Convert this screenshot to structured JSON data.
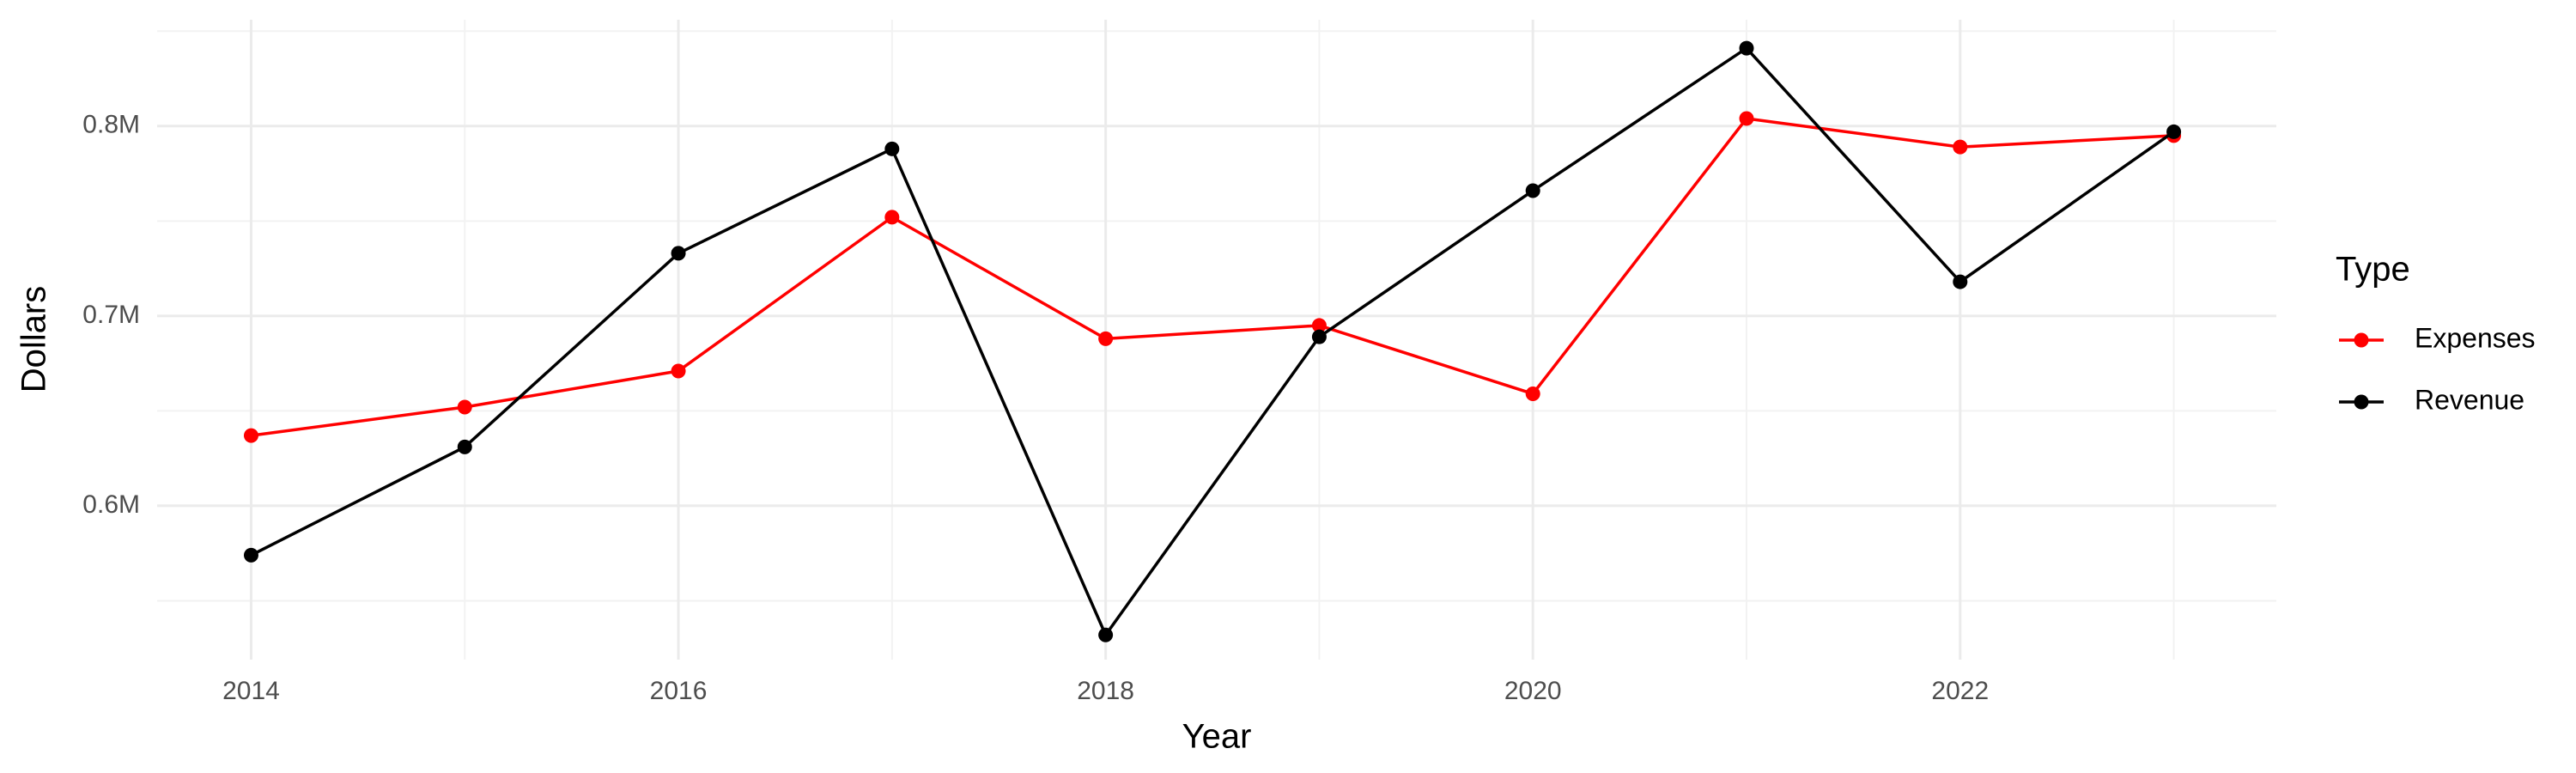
{
  "chart_data": {
    "type": "line",
    "x": [
      2014,
      2015,
      2016,
      2017,
      2018,
      2019,
      2020,
      2021,
      2022,
      2023
    ],
    "series": [
      {
        "name": "Expenses",
        "color": "#ff0000",
        "values": [
          637000,
          652000,
          671000,
          752000,
          688000,
          695000,
          659000,
          804000,
          789000,
          795000
        ]
      },
      {
        "name": "Revenue",
        "color": "#000000",
        "values": [
          574000,
          631000,
          733000,
          788000,
          532000,
          689000,
          766000,
          841000,
          718000,
          797000
        ]
      }
    ],
    "xlabel": "Year",
    "ylabel": "Dollars",
    "legend_title": "Type",
    "xlim": [
      2013.56,
      2023.48
    ],
    "xticks": [
      2014,
      2016,
      2018,
      2020,
      2022
    ],
    "ylim": [
      519000,
      856000
    ],
    "yticks": [
      {
        "value": 600000,
        "label": "0.6M"
      },
      {
        "value": 700000,
        "label": "0.7M"
      },
      {
        "value": 800000,
        "label": "0.8M"
      }
    ],
    "grid": true,
    "legend": "right"
  }
}
